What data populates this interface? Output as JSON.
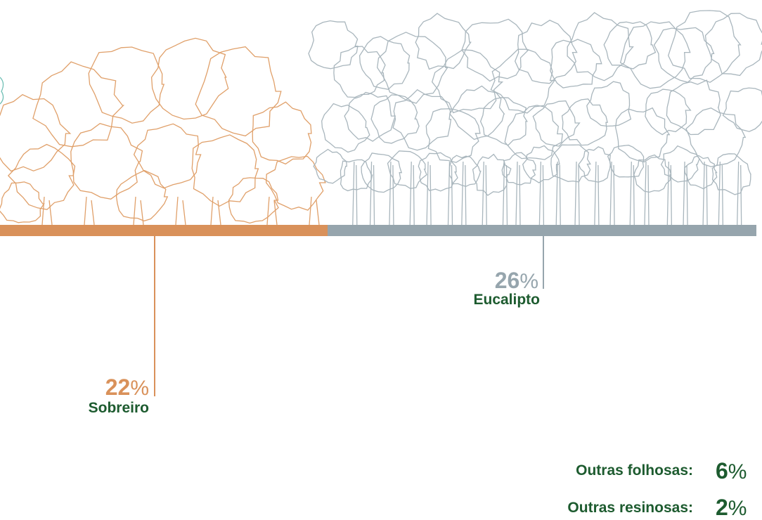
{
  "species": [
    {
      "label": "Sobreiro",
      "value": 22,
      "color": "#d9915a"
    },
    {
      "label": "Eucalipto",
      "value": 26,
      "color": "#96a5ad"
    }
  ],
  "others": [
    {
      "label": "Outras folhosas:",
      "value": 6
    },
    {
      "label": "Outras resinosas:",
      "value": 2
    }
  ],
  "unit": "%"
}
